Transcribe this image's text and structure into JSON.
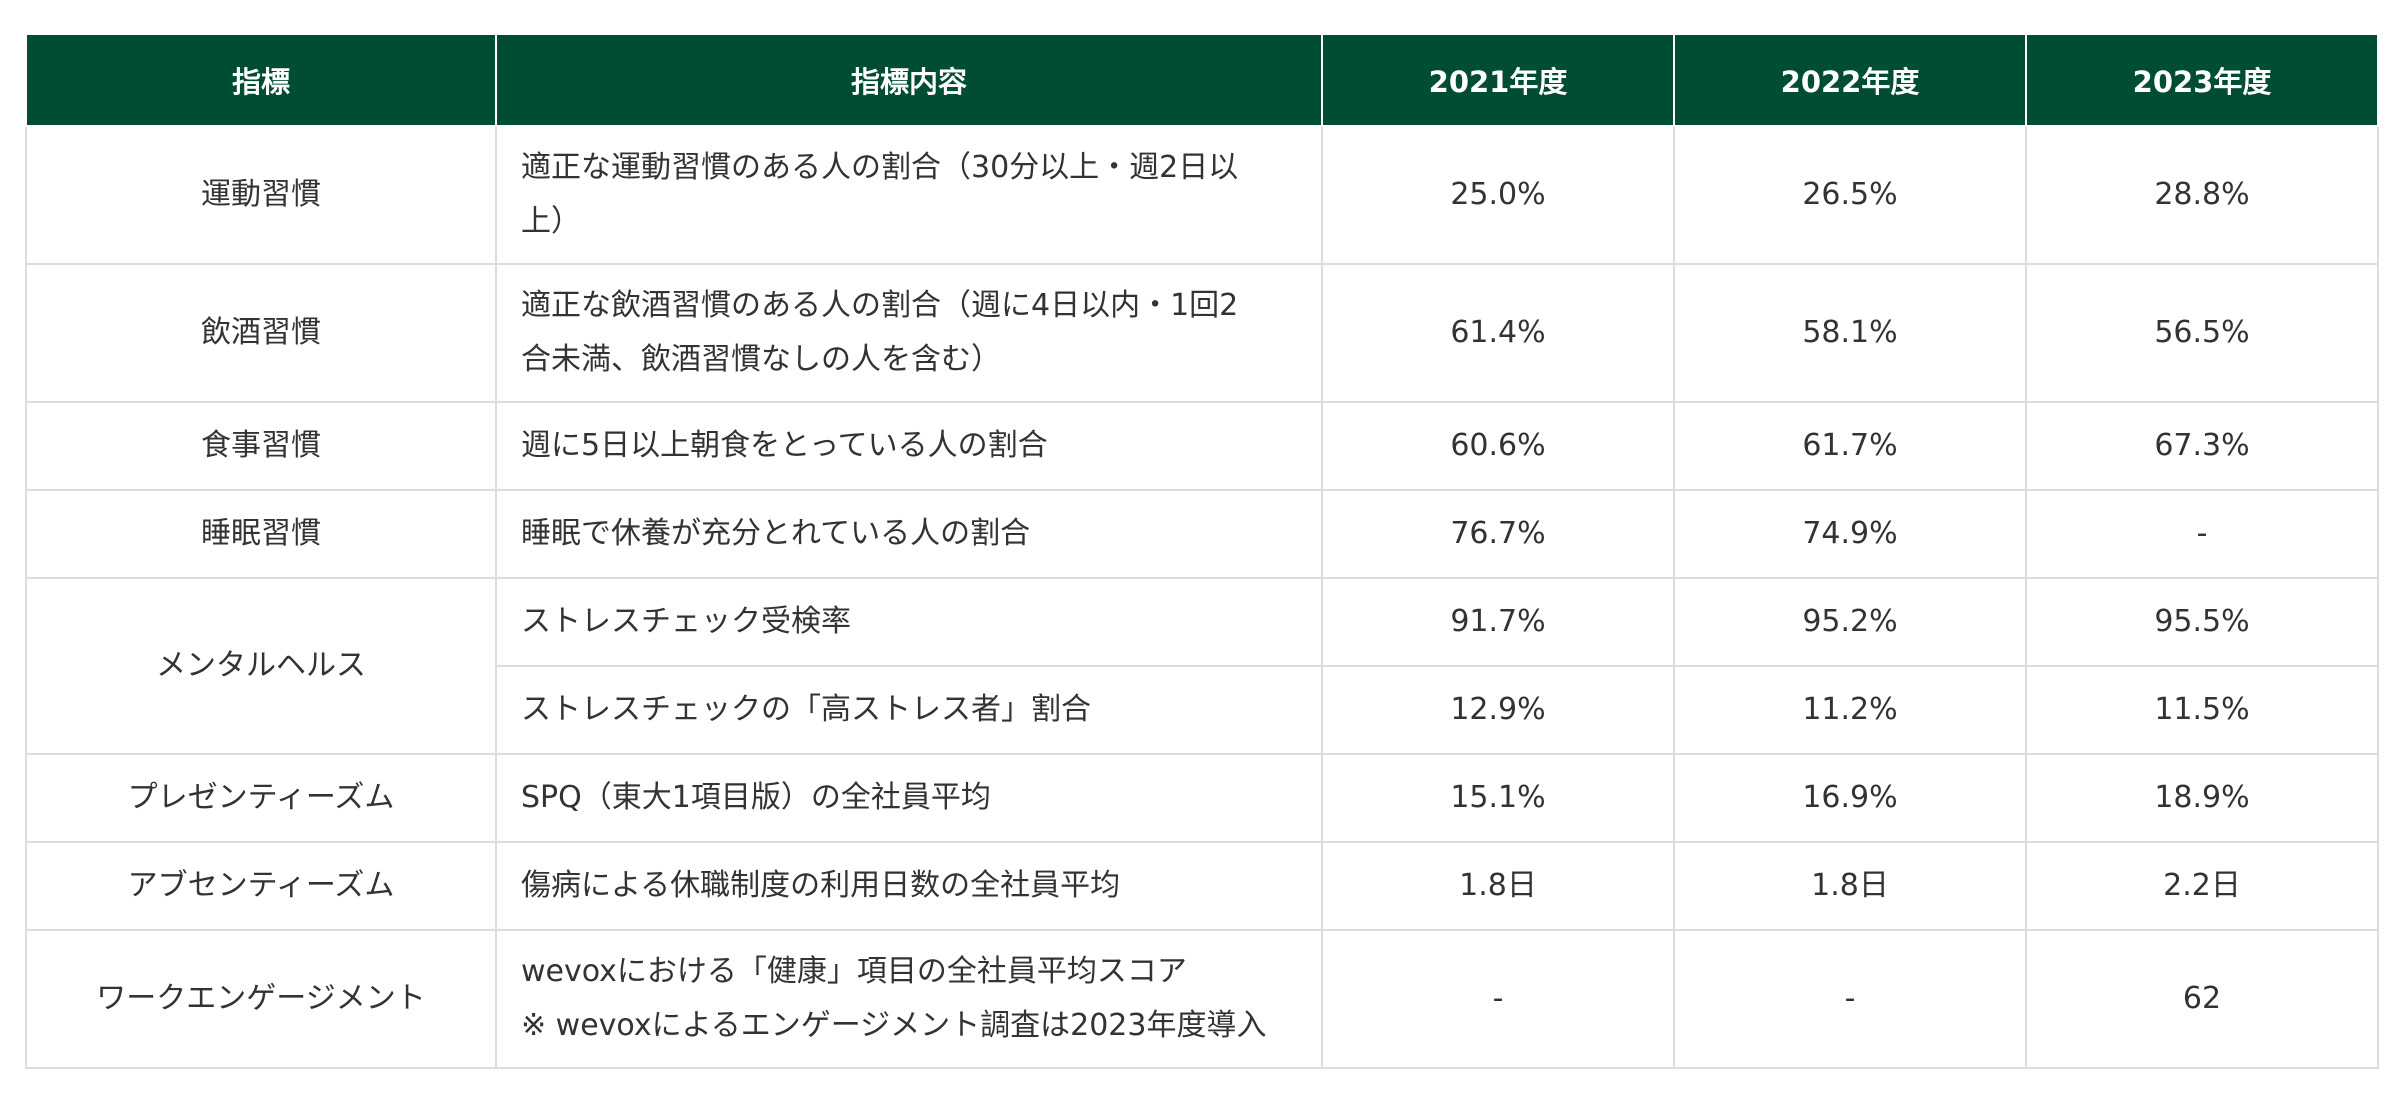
{
  "table": {
    "headers": [
      "指標",
      "指標内容",
      "2021年度",
      "2022年度",
      "2023年度"
    ],
    "rows": [
      {
        "indicator": "運動習慣",
        "content": [
          "適正な運動習慣のある人の割合（30分以上・週2日以",
          "上）"
        ],
        "y2021": "25.0%",
        "y2022": "26.5%",
        "y2023": "28.8%"
      },
      {
        "indicator": "飲酒習慣",
        "content": [
          "適正な飲酒習慣のある人の割合（週に4日以内・1回2",
          "合未満、飲酒習慣なしの人を含む）"
        ],
        "y2021": "61.4%",
        "y2022": "58.1%",
        "y2023": "56.5%"
      },
      {
        "indicator": "食事習慣",
        "content": [
          "週に5日以上朝食をとっている人の割合"
        ],
        "y2021": "60.6%",
        "y2022": "61.7%",
        "y2023": "67.3%"
      },
      {
        "indicator": "睡眠習慣",
        "content": [
          "睡眠で休養が充分とれている人の割合"
        ],
        "y2021": "76.7%",
        "y2022": "74.9%",
        "y2023": "-"
      },
      {
        "indicator": "メンタルヘルス",
        "content": [
          "ストレスチェック受検率"
        ],
        "y2021": "91.7%",
        "y2022": "95.2%",
        "y2023": "95.5%"
      },
      {
        "indicator": "",
        "content": [
          "ストレスチェックの「高ストレス者」割合"
        ],
        "y2021": "12.9%",
        "y2022": "11.2%",
        "y2023": "11.5%"
      },
      {
        "indicator": "プレゼンティーズム",
        "content": [
          "SPQ（東大1項目版）の全社員平均"
        ],
        "y2021": "15.1%",
        "y2022": "16.9%",
        "y2023": "18.9%"
      },
      {
        "indicator": "アブセンティーズム",
        "content": [
          "傷病による休職制度の利用日数の全社員平均"
        ],
        "y2021": "1.8日",
        "y2022": "1.8日",
        "y2023": "2.2日"
      },
      {
        "indicator": "ワークエンゲージメント",
        "content": [
          "wevoxにおける「健康」項目の全社員平均スコア",
          "※ wevoxによるエンゲージメント調査は2023年度導入"
        ],
        "y2021": "-",
        "y2022": "-",
        "y2023": "62"
      }
    ]
  }
}
